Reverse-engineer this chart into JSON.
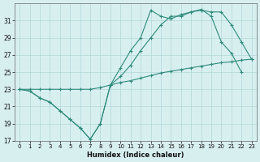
{
  "xlabel": "Humidex (Indice chaleur)",
  "bg_color": "#d8eff0",
  "line_color": "#2e8b7a",
  "grid_color": "#b0d8d8",
  "xlim": [
    -0.5,
    23.5
  ],
  "ylim": [
    17,
    33
  ],
  "yticks": [
    17,
    19,
    21,
    23,
    25,
    27,
    29,
    31
  ],
  "xticks": [
    0,
    1,
    2,
    3,
    4,
    5,
    6,
    7,
    8,
    9,
    10,
    11,
    12,
    13,
    14,
    15,
    16,
    17,
    18,
    19,
    20,
    21,
    22,
    23
  ],
  "line1_x": [
    0,
    1,
    2,
    3,
    4,
    5,
    6,
    7,
    8,
    9,
    10,
    11,
    12,
    13,
    14,
    15,
    16,
    17,
    18,
    19,
    20,
    21,
    22,
    23
  ],
  "line1_y": [
    23.0,
    22.8,
    22.0,
    21.5,
    20.5,
    19.5,
    18.5,
    17.2,
    19.0,
    23.5,
    25.5,
    27.5,
    29.0,
    32.2,
    31.5,
    31.2,
    31.7,
    32.0,
    32.3,
    31.5,
    28.5,
    27.2,
    25.0,
    null
  ],
  "line2_x": [
    0,
    1,
    2,
    3,
    4,
    5,
    6,
    7,
    8,
    9,
    10,
    11,
    12,
    13,
    14,
    15,
    16,
    17,
    18,
    19,
    20,
    21,
    22,
    23
  ],
  "line2_y": [
    23.0,
    22.8,
    22.0,
    21.5,
    20.5,
    19.5,
    18.5,
    17.2,
    19.0,
    23.5,
    24.5,
    25.8,
    27.5,
    29.0,
    30.5,
    31.5,
    31.5,
    32.0,
    32.2,
    32.0,
    32.0,
    30.5,
    28.5,
    26.5
  ],
  "line3_x": [
    0,
    1,
    2,
    3,
    4,
    5,
    6,
    7,
    8,
    9,
    10,
    11,
    12,
    13,
    14,
    15,
    16,
    17,
    18,
    19,
    20,
    21,
    22,
    23
  ],
  "line3_y": [
    23.0,
    23.0,
    23.0,
    23.0,
    23.0,
    23.0,
    23.0,
    23.0,
    23.2,
    23.5,
    23.8,
    24.0,
    24.3,
    24.6,
    24.9,
    25.1,
    25.3,
    25.5,
    25.7,
    25.9,
    26.1,
    26.2,
    26.4,
    26.5
  ]
}
